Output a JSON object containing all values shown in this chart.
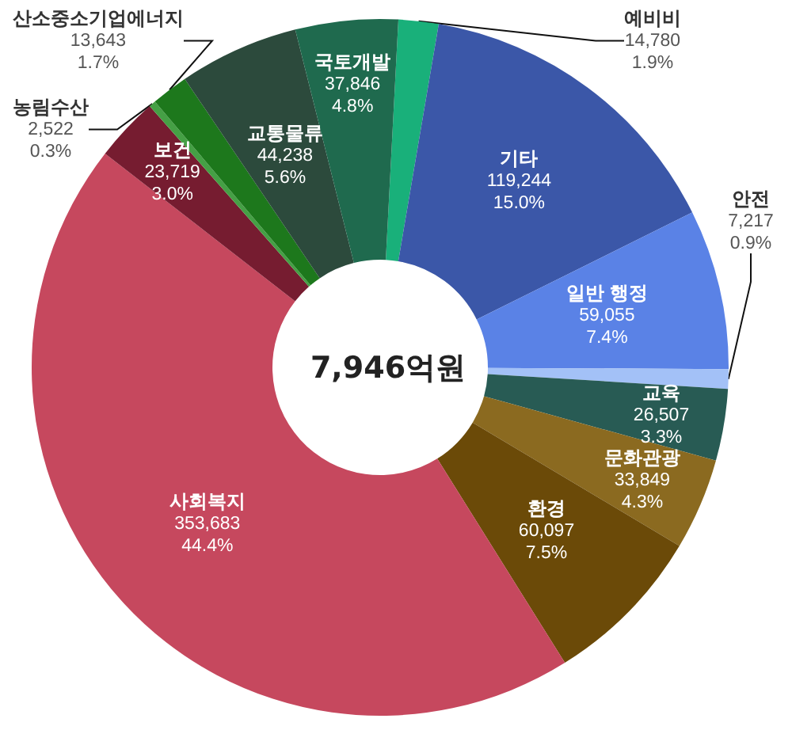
{
  "chart_data": {
    "type": "donut",
    "annotations": [
      "7,946억원"
    ],
    "categories": [
      "예비비",
      "기타",
      "일반 행정",
      "안전",
      "교육",
      "문화관광",
      "환경",
      "사회복지",
      "보건",
      "농림수산",
      "산소중소기업에너지",
      "교통물류",
      "국토개발"
    ],
    "values": [
      14780,
      119244,
      59055,
      7217,
      26507,
      33849,
      60097,
      353683,
      23719,
      2522,
      13643,
      44238,
      37846
    ],
    "value_labels": [
      "14,780\n1.9%",
      "119,244\n15.0%",
      "59,055\n7.4%",
      "7,217\n0.9%",
      "26,507\n3.3%",
      "33,849\n4.3%",
      "60,097\n7.5%",
      "353,683\n44.4%",
      "23,719\n3.0%",
      "2,522\n0.3%",
      "13,643\n1.7%",
      "44,238\n5.6%",
      "37,846\n4.8%"
    ],
    "colors": [
      "#19b07a",
      "#3b57a8",
      "#5a82e6",
      "#a3c1f7",
      "#285b54",
      "#8b6a20",
      "#6b4a08",
      "#c6485e",
      "#761c30",
      "#45a045",
      "#1d781c",
      "#2c4a3c",
      "#1f6a4e"
    ],
    "legend": false
  }
}
